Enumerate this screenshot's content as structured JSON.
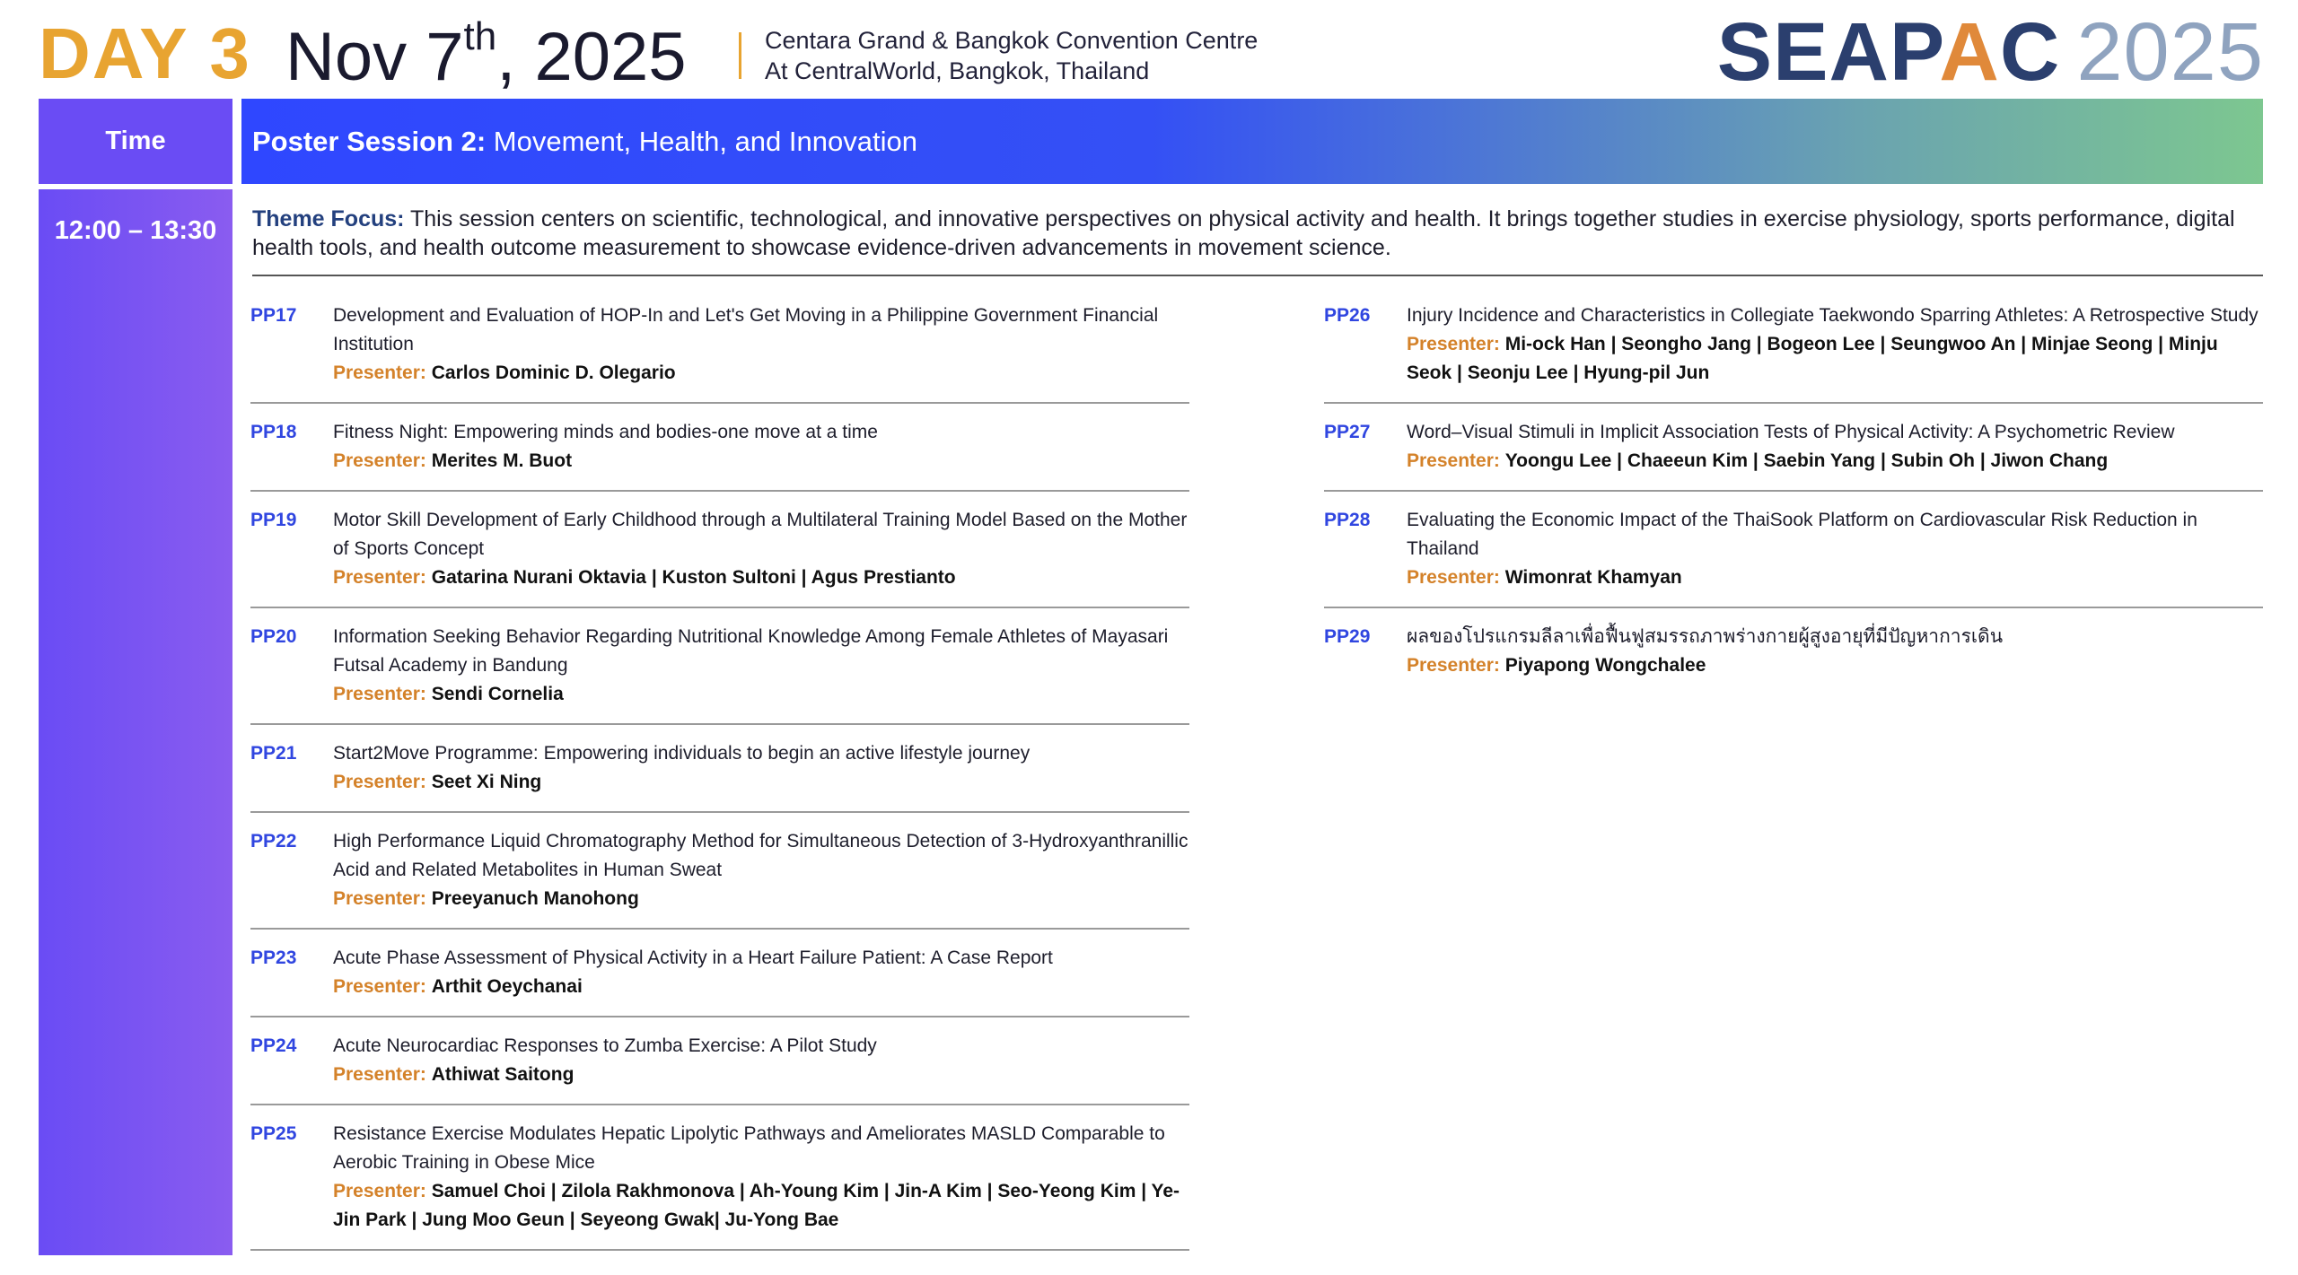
{
  "header": {
    "day": "DAY 3",
    "date_main": "Nov 7",
    "date_sup": "th",
    "date_year": ", 2025",
    "venue_line1": "Centara Grand & Bangkok Convention Centre",
    "venue_line2": "At CentralWorld, Bangkok, Thailand",
    "logo_word_a": "SEAP",
    "logo_word_b": "A",
    "logo_word_c": "C",
    "logo_year": "2025"
  },
  "session": {
    "time_label": "Time",
    "time": "12:00 – 13:30",
    "title_bold": "Poster Session 2:",
    "title_rest": "Movement, Health, and Innovation",
    "theme_label": "Theme Focus:",
    "theme_text": "This session centers on scientific, technological, and innovative perspectives on physical activity and health. It brings together studies in exercise physiology, sports performance, digital health tools, and health outcome measurement to showcase evidence-driven advancements in movement science.",
    "presenter_label": "Presenter:"
  },
  "columns": [
    [
      {
        "id": "PP17",
        "title": "Development and Evaluation of HOP-In and Let's Get Moving in a Philippine Government Financial Institution",
        "presenters": "Carlos Dominic D. Olegario"
      },
      {
        "id": "PP18",
        "title": "Fitness Night: Empowering minds and bodies-one move at a time",
        "presenters": "Merites M. Buot"
      },
      {
        "id": "PP19",
        "title": "Motor Skill Development of Early Childhood through a Multilateral Training Model Based on the Mother of Sports Concept",
        "presenters": "Gatarina Nurani Oktavia | Kuston Sultoni | Agus Prestianto"
      },
      {
        "id": "PP20",
        "title": "Information Seeking Behavior Regarding Nutritional Knowledge Among Female Athletes of Mayasari Futsal Academy in Bandung",
        "presenters": "Sendi Cornelia"
      },
      {
        "id": "PP21",
        "title": "Start2Move Programme: Empowering individuals to begin an active lifestyle journey",
        "presenters": "Seet Xi Ning"
      },
      {
        "id": "PP22",
        "title": "High Performance Liquid Chromatography Method for Simultaneous Detection of 3-Hydroxyanthranillic Acid and Related Metabolites in Human Sweat",
        "presenters": "Preeyanuch Manohong"
      },
      {
        "id": "PP23",
        "title": "Acute Phase Assessment of Physical Activity in a Heart Failure Patient: A Case Report",
        "presenters": "Arthit Oeychanai"
      },
      {
        "id": "PP24",
        "title": "Acute Neurocardiac Responses to Zumba Exercise: A Pilot Study",
        "presenters": "Athiwat Saitong"
      },
      {
        "id": "PP25",
        "title": "Resistance Exercise Modulates Hepatic Lipolytic Pathways and Ameliorates MASLD Comparable to Aerobic Training in Obese Mice",
        "presenters": "Samuel Choi | Zilola Rakhmonova | Ah-Young Kim | Jin-A Kim | Seo-Yeong Kim | Ye-Jin Park | Jung Moo Geun | Seyeong Gwak| Ju-Yong Bae"
      }
    ],
    [
      {
        "id": "PP26",
        "title": "Injury Incidence and Characteristics in Collegiate Taekwondo Sparring Athletes: A Retrospective Study",
        "presenters": "Mi-ock Han | Seongho Jang | Bogeon Lee | Seungwoo An | Minjae Seong | Minju Seok | Seonju Lee | Hyung-pil Jun"
      },
      {
        "id": "PP27",
        "title": "Word–Visual Stimuli in Implicit Association Tests of Physical Activity: A Psychometric Review",
        "presenters": "Yoongu Lee | Chaeeun Kim | Saebin Yang | Subin Oh | Jiwon Chang"
      },
      {
        "id": "PP28",
        "title": "Evaluating the Economic Impact of the ThaiSook Platform on Cardiovascular Risk Reduction in Thailand",
        "presenters": "Wimonrat Khamyan"
      },
      {
        "id": "PP29",
        "title": "ผลของโปรแกรมลีลาเพื่อฟื้นฟูสมรรถภาพร่างกายผู้สูงอายุที่มีปัญหาการเดิน",
        "presenters": "Piyapong Wongchalee"
      }
    ]
  ]
}
